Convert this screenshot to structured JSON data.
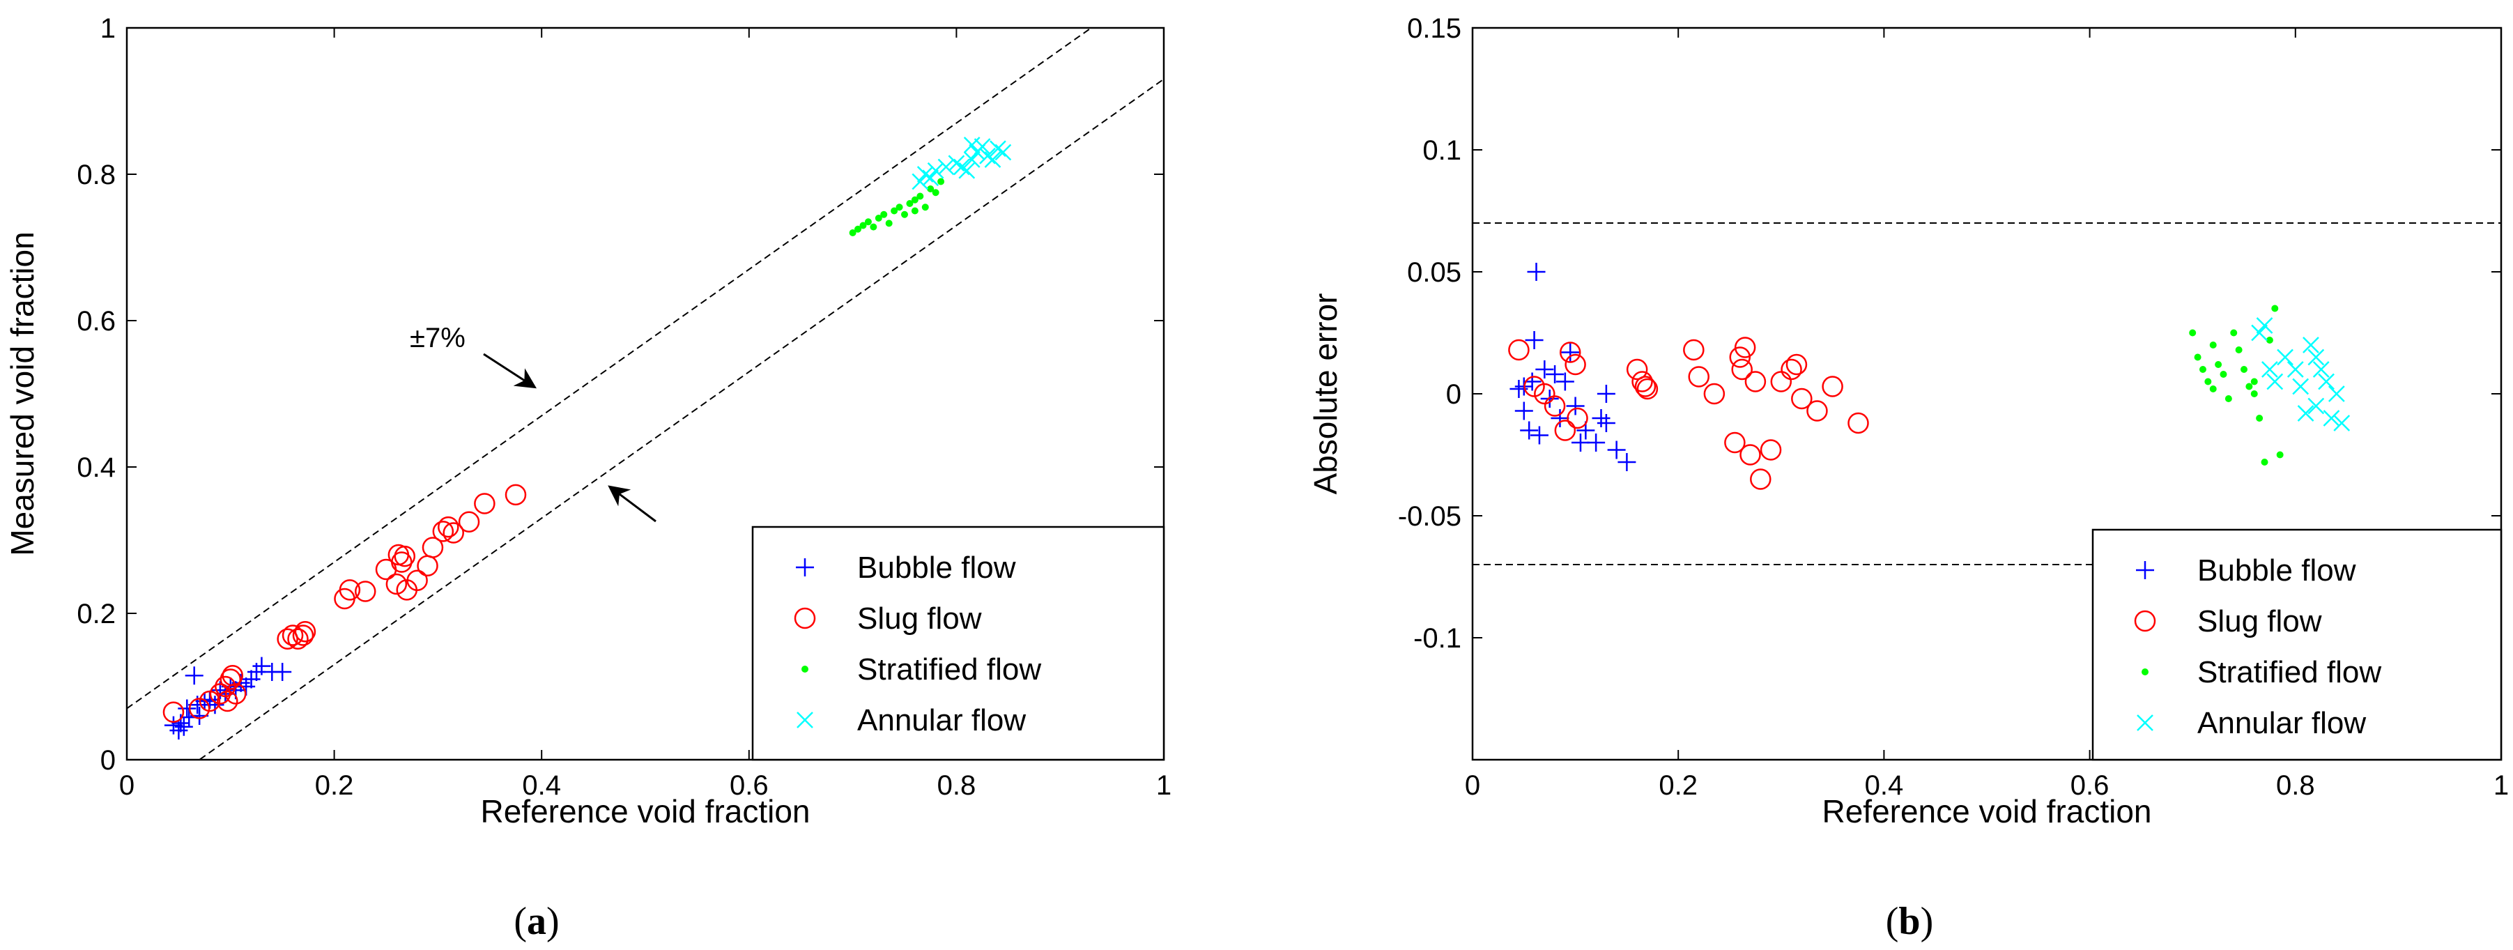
{
  "legend": {
    "items": [
      {
        "label": "Bubble flow",
        "marker": "plus",
        "color": "#0000ff"
      },
      {
        "label": "Slug flow",
        "marker": "circle",
        "color": "#ff0000"
      },
      {
        "label": "Stratified flow",
        "marker": "dot",
        "color": "#00ff00"
      },
      {
        "label": "Annular flow",
        "marker": "x",
        "color": "#00ffff"
      }
    ]
  },
  "chart_data": [
    {
      "id": "a",
      "type": "scatter",
      "panel_label": "a",
      "xlabel": "Reference void fraction",
      "ylabel": "Measured void fraction",
      "xlim": [
        0,
        1
      ],
      "ylim": [
        0,
        1
      ],
      "xticks": [
        "0",
        "0.2",
        "0.4",
        "0.6",
        "0.8",
        "1"
      ],
      "yticks": [
        "0",
        "0.2",
        "0.4",
        "0.6",
        "0.8",
        "1"
      ],
      "annotation": "±7%",
      "reference_lines": [
        {
          "name": "upper bound",
          "x": [
            0,
            1
          ],
          "y": [
            0.07,
            1.07
          ],
          "style": "dashed"
        },
        {
          "name": "lower bound",
          "x": [
            0,
            1
          ],
          "y": [
            -0.07,
            0.93
          ],
          "style": "dashed"
        }
      ],
      "series": [
        {
          "name": "Bubble flow",
          "points": [
            [
              0.045,
              0.047
            ],
            [
              0.05,
              0.04
            ],
            [
              0.052,
              0.05
            ],
            [
              0.055,
              0.045
            ],
            [
              0.058,
              0.07
            ],
            [
              0.06,
              0.058
            ],
            [
              0.065,
              0.115
            ],
            [
              0.068,
              0.075
            ],
            [
              0.07,
              0.06
            ],
            [
              0.075,
              0.08
            ],
            [
              0.08,
              0.082
            ],
            [
              0.085,
              0.075
            ],
            [
              0.09,
              0.095
            ],
            [
              0.095,
              0.09
            ],
            [
              0.1,
              0.1
            ],
            [
              0.105,
              0.095
            ],
            [
              0.11,
              0.105
            ],
            [
              0.115,
              0.1
            ],
            [
              0.12,
              0.11
            ],
            [
              0.125,
              0.12
            ],
            [
              0.13,
              0.128
            ],
            [
              0.14,
              0.12
            ],
            [
              0.15,
              0.12
            ]
          ]
        },
        {
          "name": "Slug flow",
          "points": [
            [
              0.045,
              0.065
            ],
            [
              0.07,
              0.07
            ],
            [
              0.08,
              0.08
            ],
            [
              0.09,
              0.09
            ],
            [
              0.095,
              0.1
            ],
            [
              0.097,
              0.08
            ],
            [
              0.1,
              0.11
            ],
            [
              0.102,
              0.115
            ],
            [
              0.105,
              0.09
            ],
            [
              0.155,
              0.165
            ],
            [
              0.16,
              0.17
            ],
            [
              0.165,
              0.165
            ],
            [
              0.17,
              0.17
            ],
            [
              0.172,
              0.175
            ],
            [
              0.21,
              0.22
            ],
            [
              0.215,
              0.232
            ],
            [
              0.23,
              0.23
            ],
            [
              0.25,
              0.26
            ],
            [
              0.26,
              0.24
            ],
            [
              0.262,
              0.28
            ],
            [
              0.265,
              0.27
            ],
            [
              0.268,
              0.278
            ],
            [
              0.27,
              0.232
            ],
            [
              0.28,
              0.245
            ],
            [
              0.29,
              0.265
            ],
            [
              0.295,
              0.29
            ],
            [
              0.305,
              0.312
            ],
            [
              0.31,
              0.318
            ],
            [
              0.315,
              0.31
            ],
            [
              0.33,
              0.325
            ],
            [
              0.345,
              0.35
            ],
            [
              0.375,
              0.362
            ]
          ]
        },
        {
          "name": "Stratified flow",
          "points": [
            [
              0.7,
              0.72
            ],
            [
              0.705,
              0.725
            ],
            [
              0.71,
              0.73
            ],
            [
              0.715,
              0.735
            ],
            [
              0.72,
              0.728
            ],
            [
              0.725,
              0.74
            ],
            [
              0.73,
              0.745
            ],
            [
              0.735,
              0.733
            ],
            [
              0.74,
              0.75
            ],
            [
              0.745,
              0.755
            ],
            [
              0.75,
              0.745
            ],
            [
              0.755,
              0.76
            ],
            [
              0.76,
              0.765
            ],
            [
              0.765,
              0.77
            ],
            [
              0.77,
              0.755
            ],
            [
              0.775,
              0.78
            ],
            [
              0.78,
              0.775
            ],
            [
              0.785,
              0.79
            ],
            [
              0.76,
              0.75
            ]
          ]
        },
        {
          "name": "Annular flow",
          "points": [
            [
              0.765,
              0.79
            ],
            [
              0.77,
              0.8
            ],
            [
              0.775,
              0.795
            ],
            [
              0.78,
              0.805
            ],
            [
              0.79,
              0.81
            ],
            [
              0.8,
              0.815
            ],
            [
              0.805,
              0.81
            ],
            [
              0.81,
              0.805
            ],
            [
              0.815,
              0.82
            ],
            [
              0.82,
              0.83
            ],
            [
              0.825,
              0.838
            ],
            [
              0.83,
              0.825
            ],
            [
              0.835,
              0.82
            ],
            [
              0.84,
              0.835
            ],
            [
              0.845,
              0.83
            ],
            [
              0.815,
              0.84
            ]
          ]
        }
      ]
    },
    {
      "id": "b",
      "type": "scatter",
      "panel_label": "b",
      "xlabel": "Reference void fraction",
      "ylabel": "Absolute error",
      "xlim": [
        0,
        1
      ],
      "ylim": [
        -0.15,
        0.15
      ],
      "xticks": [
        "0",
        "0.2",
        "0.4",
        "0.6",
        "0.8",
        "1"
      ],
      "yticks": [
        "0.15",
        "0.1",
        "0.05",
        "0",
        "-0.05",
        "-0.1"
      ],
      "yticks_values": [
        0.15,
        0.1,
        0.05,
        0,
        -0.05,
        -0.1
      ],
      "reference_lines": [
        {
          "name": "upper limit",
          "x": [
            0,
            1
          ],
          "y": [
            0.07,
            0.07
          ],
          "style": "dashed"
        },
        {
          "name": "lower limit",
          "x": [
            0,
            1
          ],
          "y": [
            -0.07,
            -0.07
          ],
          "style": "dashed"
        }
      ],
      "series": [
        {
          "name": "Bubble flow",
          "points": [
            [
              0.045,
              0.002
            ],
            [
              0.05,
              0.003
            ],
            [
              0.05,
              -0.007
            ],
            [
              0.055,
              -0.015
            ],
            [
              0.058,
              0.005
            ],
            [
              0.06,
              0.022
            ],
            [
              0.062,
              0.05
            ],
            [
              0.065,
              -0.017
            ],
            [
              0.07,
              0.01
            ],
            [
              0.075,
              -0.002
            ],
            [
              0.08,
              0.008
            ],
            [
              0.085,
              -0.01
            ],
            [
              0.09,
              0.005
            ],
            [
              0.095,
              0.017
            ],
            [
              0.1,
              -0.005
            ],
            [
              0.105,
              -0.02
            ],
            [
              0.11,
              -0.015
            ],
            [
              0.12,
              -0.02
            ],
            [
              0.125,
              -0.01
            ],
            [
              0.13,
              0.0
            ],
            [
              0.13,
              -0.012
            ],
            [
              0.14,
              -0.023
            ],
            [
              0.15,
              -0.028
            ]
          ]
        },
        {
          "name": "Slug flow",
          "points": [
            [
              0.045,
              0.018
            ],
            [
              0.06,
              0.003
            ],
            [
              0.07,
              0.0
            ],
            [
              0.08,
              -0.005
            ],
            [
              0.09,
              -0.015
            ],
            [
              0.095,
              0.017
            ],
            [
              0.1,
              0.012
            ],
            [
              0.102,
              -0.01
            ],
            [
              0.16,
              0.01
            ],
            [
              0.165,
              0.005
            ],
            [
              0.168,
              0.003
            ],
            [
              0.17,
              0.002
            ],
            [
              0.215,
              0.018
            ],
            [
              0.22,
              0.007
            ],
            [
              0.235,
              0.0
            ],
            [
              0.255,
              -0.02
            ],
            [
              0.26,
              0.015
            ],
            [
              0.262,
              0.01
            ],
            [
              0.265,
              0.019
            ],
            [
              0.27,
              -0.025
            ],
            [
              0.275,
              0.005
            ],
            [
              0.28,
              -0.035
            ],
            [
              0.29,
              -0.023
            ],
            [
              0.3,
              0.005
            ],
            [
              0.31,
              0.01
            ],
            [
              0.315,
              0.012
            ],
            [
              0.32,
              -0.002
            ],
            [
              0.335,
              -0.007
            ],
            [
              0.35,
              0.003
            ],
            [
              0.375,
              -0.012
            ]
          ]
        },
        {
          "name": "Stratified flow",
          "points": [
            [
              0.7,
              0.025
            ],
            [
              0.705,
              0.015
            ],
            [
              0.71,
              0.01
            ],
            [
              0.715,
              0.005
            ],
            [
              0.72,
              0.02
            ],
            [
              0.725,
              0.012
            ],
            [
              0.73,
              0.008
            ],
            [
              0.735,
              -0.002
            ],
            [
              0.74,
              0.025
            ],
            [
              0.745,
              0.018
            ],
            [
              0.75,
              0.01
            ],
            [
              0.755,
              0.003
            ],
            [
              0.76,
              0.0
            ],
            [
              0.765,
              -0.01
            ],
            [
              0.77,
              -0.028
            ],
            [
              0.775,
              0.022
            ],
            [
              0.78,
              0.035
            ],
            [
              0.785,
              -0.025
            ],
            [
              0.76,
              0.005
            ],
            [
              0.72,
              0.002
            ]
          ]
        },
        {
          "name": "Annular flow",
          "points": [
            [
              0.765,
              0.025
            ],
            [
              0.77,
              0.028
            ],
            [
              0.775,
              0.01
            ],
            [
              0.78,
              0.005
            ],
            [
              0.79,
              0.015
            ],
            [
              0.8,
              0.01
            ],
            [
              0.805,
              0.003
            ],
            [
              0.81,
              -0.008
            ],
            [
              0.815,
              0.02
            ],
            [
              0.82,
              0.015
            ],
            [
              0.825,
              0.01
            ],
            [
              0.83,
              0.005
            ],
            [
              0.835,
              -0.01
            ],
            [
              0.84,
              0.0
            ],
            [
              0.845,
              -0.012
            ],
            [
              0.82,
              -0.005
            ]
          ]
        }
      ]
    }
  ]
}
